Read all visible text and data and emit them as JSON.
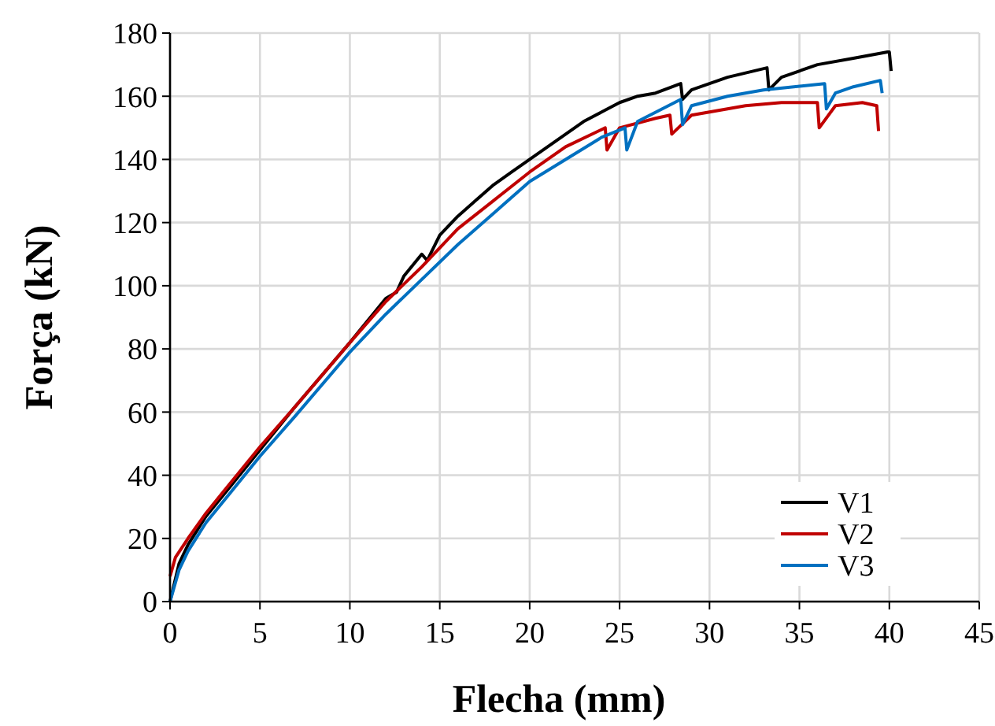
{
  "chart_data": {
    "type": "line",
    "xlabel": "Flecha (mm)",
    "ylabel": "Força (kN)",
    "xlim": [
      0,
      45
    ],
    "xticks": [
      0,
      5,
      10,
      15,
      20,
      25,
      30,
      35,
      40,
      45
    ],
    "ylim": [
      0,
      180
    ],
    "yticks": [
      0,
      20,
      40,
      60,
      80,
      100,
      120,
      140,
      160,
      180
    ],
    "grid": true,
    "legend": "bottom right",
    "marker": "none",
    "line_style": "solid",
    "series": [
      {
        "name": "V1",
        "color": "#000000",
        "x": [
          0,
          0.5,
          1,
          2,
          3,
          5,
          7,
          10,
          12,
          12.6,
          13,
          14,
          14.3,
          15,
          16,
          17,
          18,
          19,
          20,
          21,
          22,
          23,
          24,
          25,
          26,
          27,
          28.4,
          28.5,
          29,
          31,
          33.2,
          33.3,
          34,
          36,
          38,
          39.9,
          40,
          40.1
        ],
        "values": [
          0,
          12,
          18,
          27,
          34,
          48,
          62,
          82,
          96,
          98,
          103,
          110,
          108,
          116,
          122,
          127,
          132,
          136,
          140,
          144,
          148,
          152,
          155,
          158,
          160,
          161,
          164,
          159,
          162,
          166,
          169,
          162,
          166,
          170,
          172,
          174,
          174,
          168
        ]
      },
      {
        "name": "V2",
        "color": "#c00000",
        "x": [
          0,
          0.3,
          1,
          2,
          3,
          5,
          7,
          10,
          12,
          14,
          16,
          18,
          20,
          22,
          24.2,
          24.3,
          25,
          27,
          27.8,
          27.9,
          29,
          30,
          32,
          34,
          36,
          36.1,
          37,
          38.5,
          39.3,
          39.4
        ],
        "values": [
          8,
          14,
          20,
          28,
          35,
          49,
          62,
          82,
          95,
          106,
          118,
          127,
          136,
          144,
          150,
          143,
          150,
          153,
          154,
          148,
          154,
          155,
          157,
          158,
          158,
          150,
          157,
          158,
          157,
          149
        ]
      },
      {
        "name": "V3",
        "color": "#0070c0",
        "x": [
          0,
          0.5,
          1,
          2,
          3,
          5,
          7,
          10,
          12,
          14,
          16,
          18,
          20,
          22,
          24,
          25.3,
          25.4,
          26,
          28.4,
          28.5,
          29,
          31,
          33,
          36.4,
          36.5,
          37,
          38,
          39.5,
          39.6
        ],
        "values": [
          0,
          10,
          16,
          25,
          32,
          46,
          59,
          79,
          91,
          102,
          113,
          123,
          133,
          140,
          147,
          150,
          143,
          152,
          159,
          151,
          157,
          160,
          162,
          164,
          156,
          161,
          163,
          165,
          161
        ]
      }
    ]
  }
}
